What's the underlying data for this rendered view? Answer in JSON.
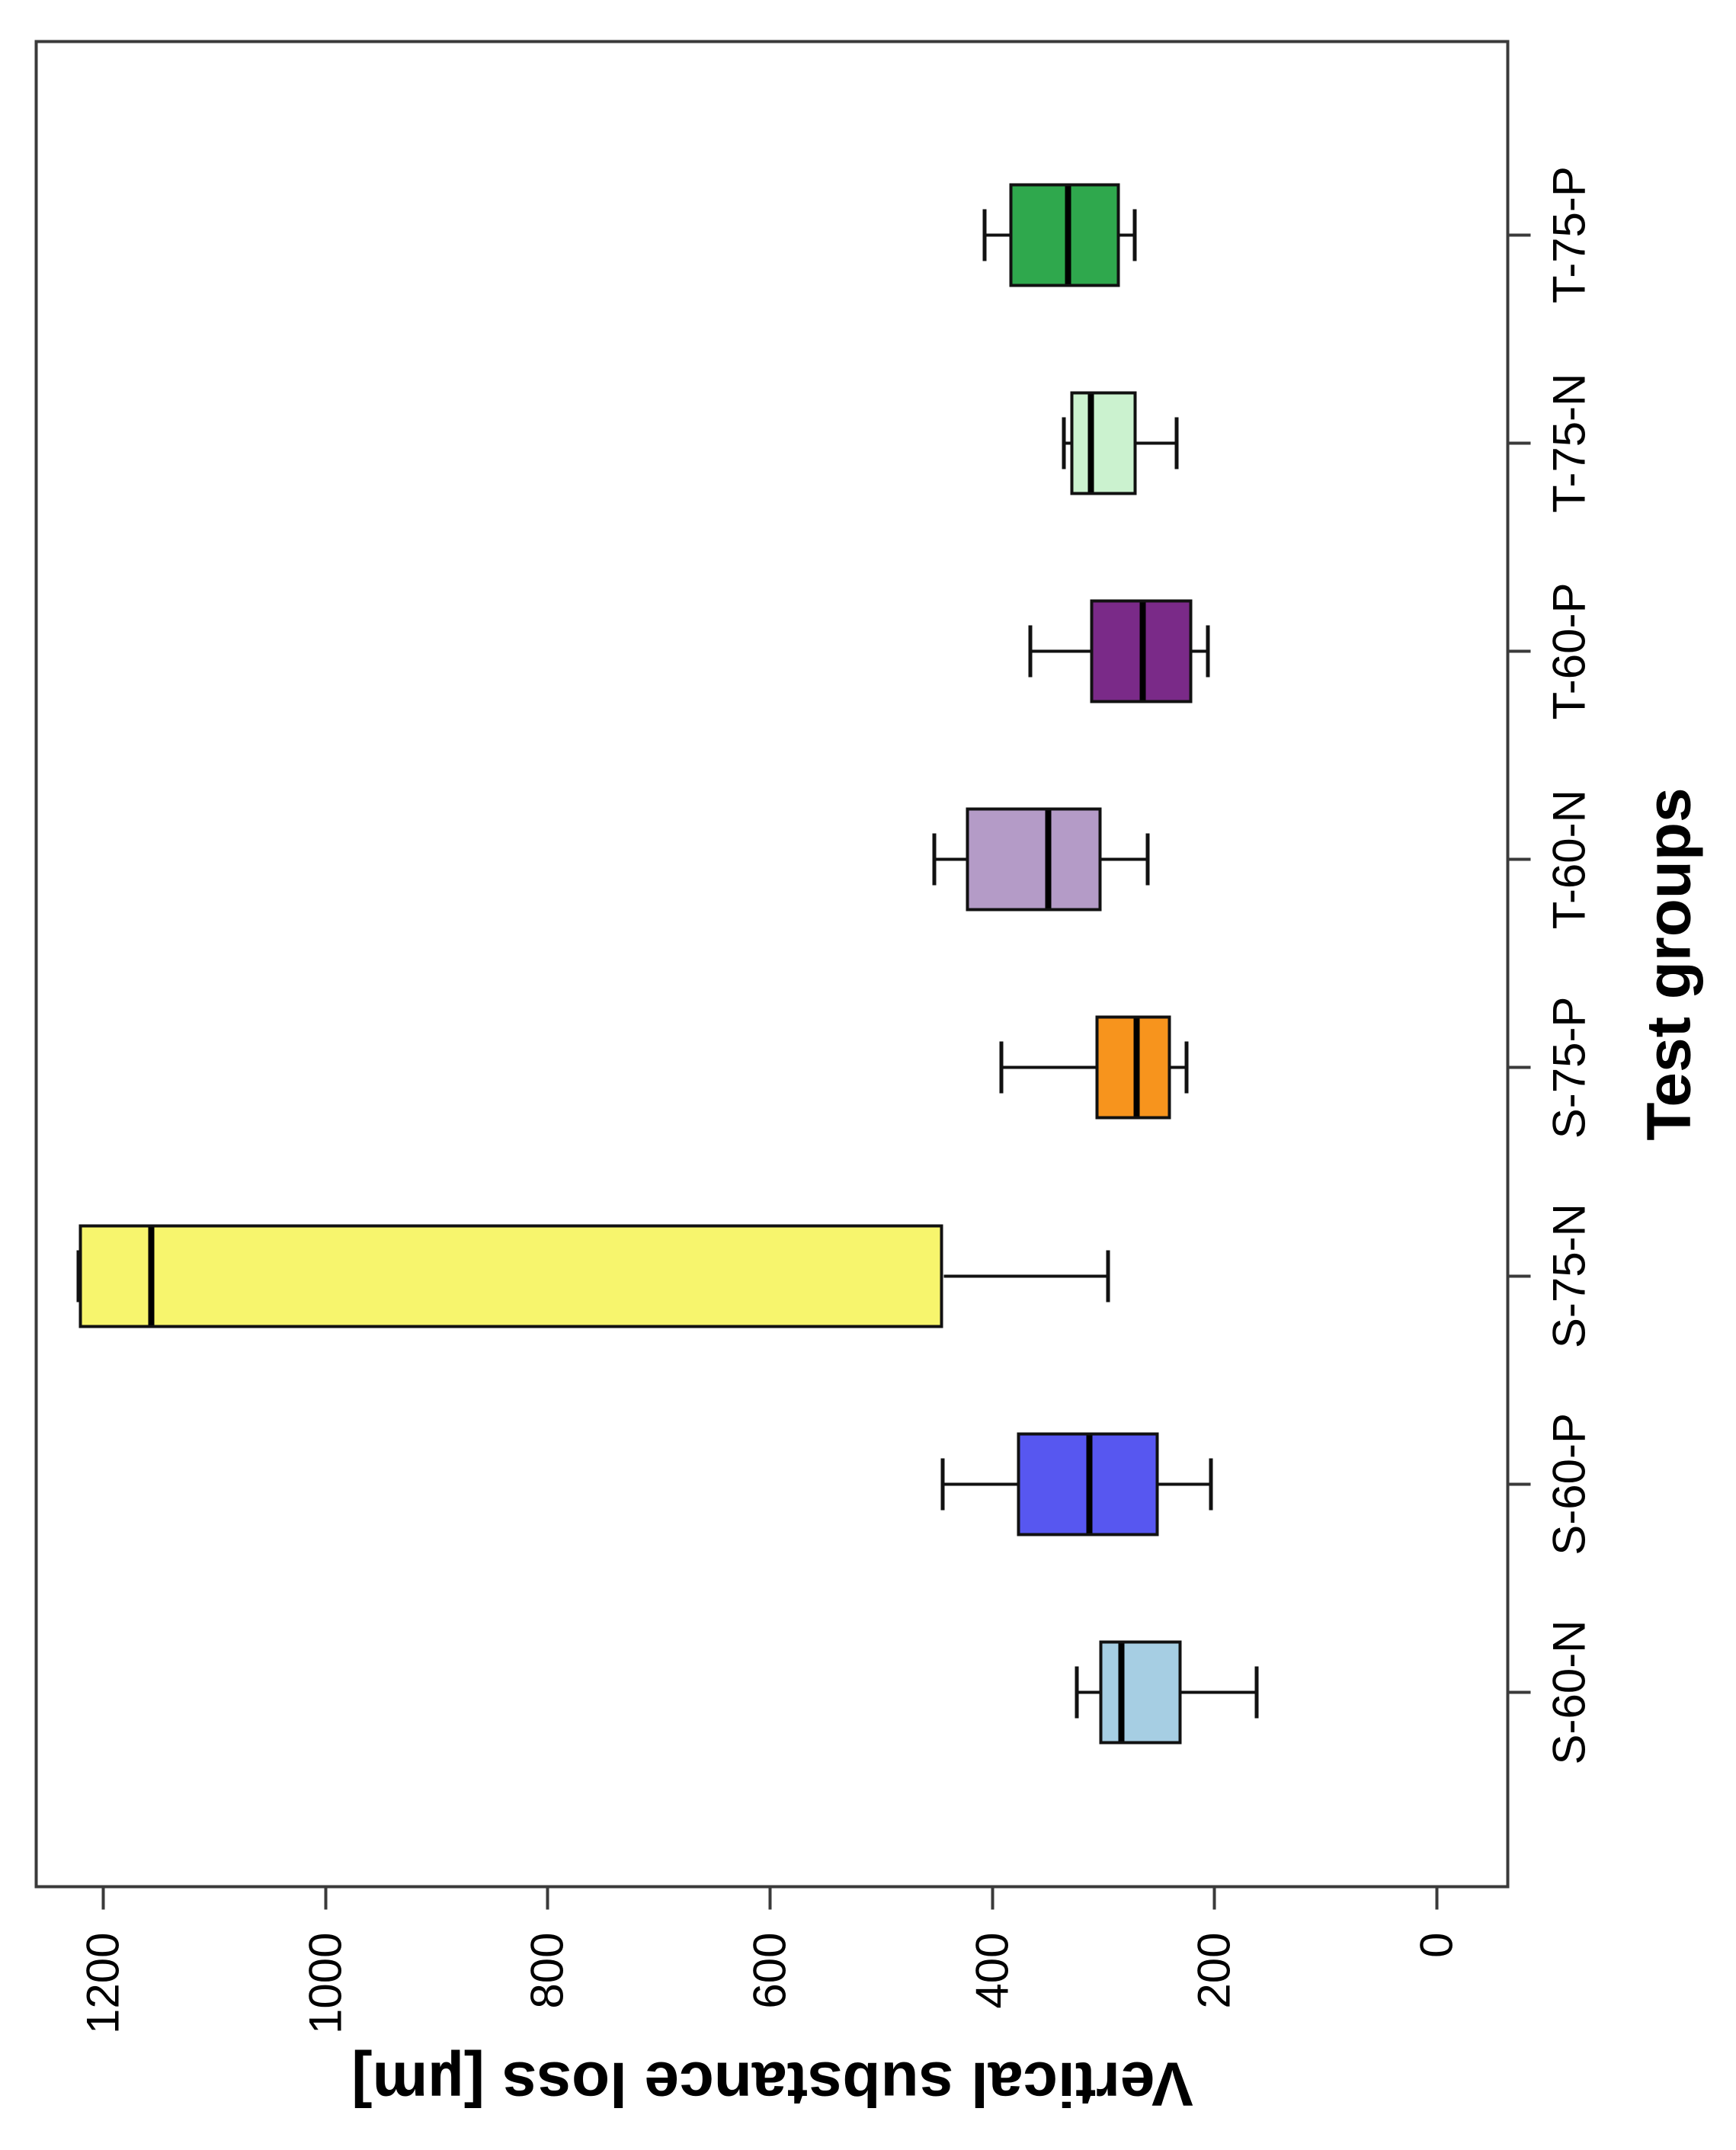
{
  "figure": {
    "background": "#FFFFFF",
    "orientation_note": "landscape boxplot figure rotated 90 degrees counter-clockwise into portrait"
  },
  "chart_data": {
    "type": "boxplot",
    "title": "",
    "xlabel": "Test groups",
    "ylabel": "Vertical substance loss [µm]",
    "value_ticks": [
      0,
      200,
      400,
      600,
      800,
      1000,
      1200
    ],
    "ylim": [
      -65,
      1260
    ],
    "grid": false,
    "legend": false,
    "frame_color": "#3A3A3A",
    "line_color": "#111111",
    "categories": [
      "S-60-N",
      "S-60-P",
      "S-75-N",
      "S-75-P",
      "T-60-N",
      "T-60-P",
      "T-75-N",
      "T-75-P"
    ],
    "boxes": [
      {
        "group": "S-60-N",
        "color": "#A6CEE3",
        "whisker_low": 162,
        "q1": 230,
        "median": 284,
        "q3": 304,
        "whisker_high": 324
      },
      {
        "group": "S-60-P",
        "color": "#5757F0",
        "whisker_low": 203,
        "q1": 250,
        "median": 313,
        "q3": 378,
        "whisker_high": 445
      },
      {
        "group": "S-75-N",
        "color": "#F7F56D",
        "whisker_low": 296,
        "q1": 444,
        "median": 1157,
        "q3": 1222,
        "whisker_high": 1222
      },
      {
        "group": "S-75-P",
        "color": "#F7941D",
        "whisker_low": 225,
        "q1": 239,
        "median": 270,
        "q3": 307,
        "whisker_high": 392
      },
      {
        "group": "T-60-N",
        "color": "#B49BC7",
        "whisker_low": 260,
        "q1": 302,
        "median": 350,
        "q3": 424,
        "whisker_high": 452
      },
      {
        "group": "T-60-P",
        "color": "#7A2A88",
        "whisker_low": 206,
        "q1": 220,
        "median": 265,
        "q3": 312,
        "whisker_high": 366
      },
      {
        "group": "T-75-N",
        "color": "#CBF2CF",
        "whisker_low": 234,
        "q1": 270,
        "median": 311,
        "q3": 330,
        "whisker_high": 336
      },
      {
        "group": "T-75-P",
        "color": "#2FA84D",
        "whisker_low": 272,
        "q1": 285,
        "median": 332,
        "q3": 385,
        "whisker_high": 407
      }
    ],
    "outliers": []
  }
}
